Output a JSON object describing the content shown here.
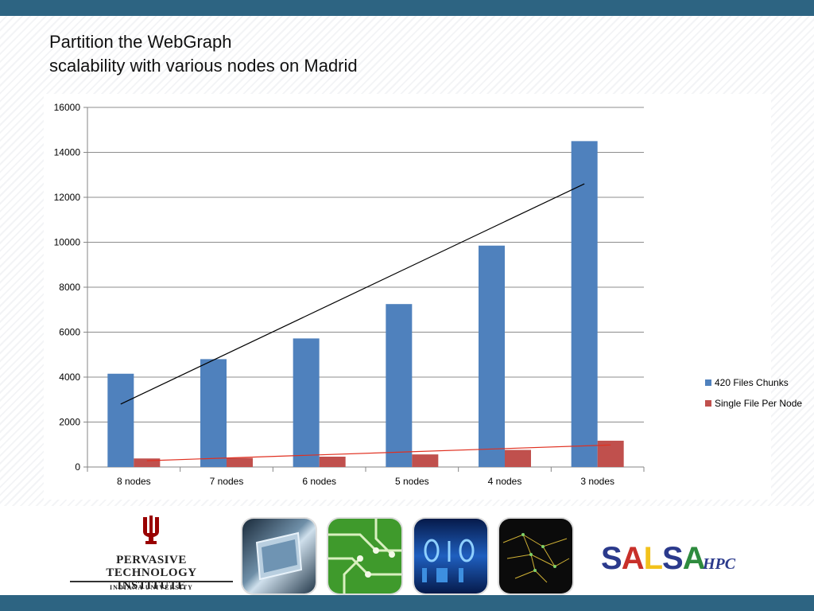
{
  "slide": {
    "title_line1": "Partition the WebGraph",
    "title_line2": "scalability with various nodes on Madrid"
  },
  "chart_data": {
    "type": "bar",
    "categories": [
      "8 nodes",
      "7 nodes",
      "6 nodes",
      "5 nodes",
      "4 nodes",
      "3 nodes"
    ],
    "series": [
      {
        "name": "420 Files Chunks",
        "values": [
          4150,
          4800,
          5720,
          7250,
          9850,
          14500
        ],
        "color": "#4f81bd"
      },
      {
        "name": "Single File Per Node",
        "values": [
          380,
          400,
          460,
          560,
          760,
          1170
        ],
        "color": "#c0504d"
      }
    ],
    "ylim": [
      0,
      16000
    ],
    "yticks": [
      "0",
      "2000",
      "4000",
      "6000",
      "8000",
      "10000",
      "12000",
      "14000",
      "16000"
    ],
    "grid": true,
    "legend": "right",
    "trendlines": [
      {
        "series": "420 Files Chunks",
        "from": {
          "category": "8 nodes",
          "y": 2800
        },
        "to": {
          "category": "3 nodes",
          "y": 12600
        },
        "color": "#000000"
      },
      {
        "series": "Single File Per Node",
        "from": {
          "category": "8 nodes",
          "y": 280
        },
        "to": {
          "category": "3 nodes",
          "y": 980
        },
        "color": "#e03020"
      }
    ]
  },
  "footer": {
    "pti_name_line1": "PERVASIVE TECHNOLOGY",
    "pti_name_line2": "INSTITUTE",
    "pti_university": "INDIANA UNIVERSITY",
    "salsa_letters": [
      "S",
      "A",
      "L",
      "S",
      "A"
    ],
    "salsa_colors": [
      "#2b3a8c",
      "#c8302a",
      "#f2c21b",
      "#2b3a8c",
      "#2e8b3e"
    ],
    "salsa_suffix": "HPC"
  }
}
